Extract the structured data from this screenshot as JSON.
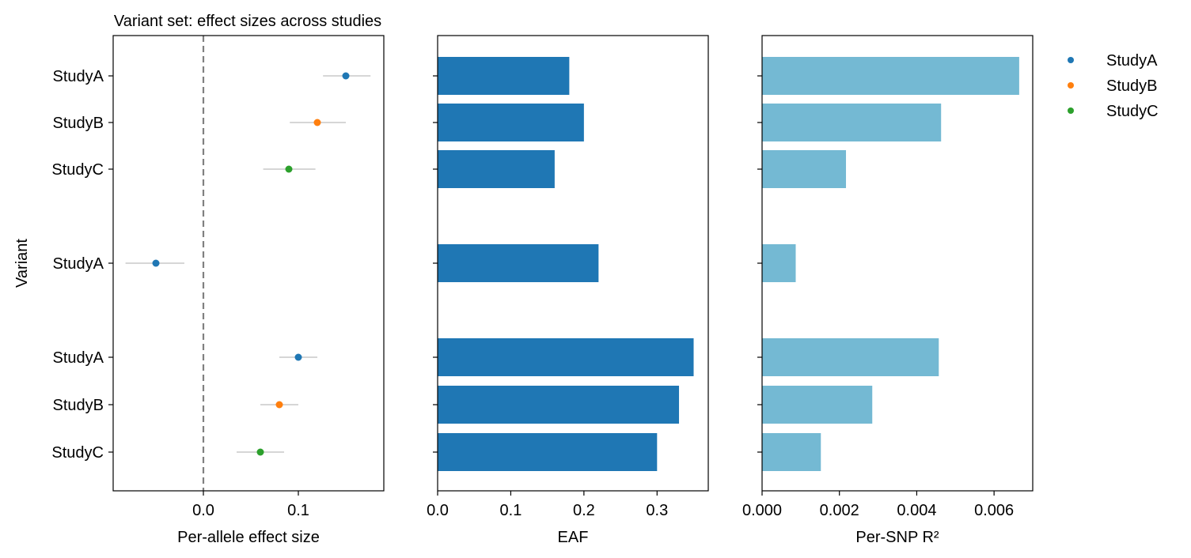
{
  "chart_data": [
    {
      "type": "scatter",
      "subtype": "forest",
      "title": "Variant set: effect sizes across studies",
      "xlabel": "Per-allele effect size",
      "ylabel": "Variant",
      "xlim": [
        -0.095,
        0.19
      ],
      "x_ticks": [
        0.0,
        0.1
      ],
      "x_tick_labels": [
        "0.0",
        "0.1"
      ],
      "reference_line": 0.0,
      "rows": [
        {
          "label": "StudyA",
          "study": "StudyA",
          "value": 0.15,
          "ci": [
            0.126,
            0.176
          ]
        },
        {
          "label": "StudyB",
          "study": "StudyB",
          "value": 0.12,
          "ci": [
            0.091,
            0.15
          ]
        },
        {
          "label": "StudyC",
          "study": "StudyC",
          "value": 0.09,
          "ci": [
            0.063,
            0.118
          ]
        },
        {
          "label": "StudyA",
          "study": "StudyA",
          "value": -0.05,
          "ci": [
            -0.082,
            -0.02
          ]
        },
        {
          "label": "StudyA",
          "study": "StudyA",
          "value": 0.1,
          "ci": [
            0.08,
            0.12
          ]
        },
        {
          "label": "StudyB",
          "study": "StudyB",
          "value": 0.08,
          "ci": [
            0.06,
            0.1
          ]
        },
        {
          "label": "StudyC",
          "study": "StudyC",
          "value": 0.06,
          "ci": [
            0.035,
            0.085
          ]
        }
      ],
      "grid": false
    },
    {
      "type": "bar",
      "orientation": "horizontal",
      "xlabel": "EAF",
      "xlim": [
        0,
        0.37
      ],
      "x_ticks": [
        0.0,
        0.1,
        0.2,
        0.3
      ],
      "x_tick_labels": [
        "0.0",
        "0.1",
        "0.2",
        "0.3"
      ],
      "values": [
        0.18,
        0.2,
        0.16,
        0.22,
        0.35,
        0.33,
        0.3
      ],
      "grid": false
    },
    {
      "type": "bar",
      "orientation": "horizontal",
      "xlabel": "Per-SNP R²",
      "xlim": [
        0,
        0.007
      ],
      "x_ticks": [
        0.0,
        0.002,
        0.004,
        0.006
      ],
      "x_tick_labels": [
        "0.000",
        "0.002",
        "0.004",
        "0.006"
      ],
      "values": [
        0.00665,
        0.00463,
        0.00217,
        0.00087,
        0.00457,
        0.00285,
        0.00152
      ],
      "grid": false
    }
  ],
  "legend": {
    "placement": "outside-right-top",
    "entries": [
      {
        "name": "StudyA",
        "color": "#1f77b4"
      },
      {
        "name": "StudyB",
        "color": "#ff7f0e"
      },
      {
        "name": "StudyC",
        "color": "#2ca02c"
      }
    ]
  },
  "colors": {
    "eaf_bar": "#1f77b4",
    "r2_bar": "#74b9d3",
    "ci_line": "#c8c8c8",
    "reference_line": "#808080"
  }
}
